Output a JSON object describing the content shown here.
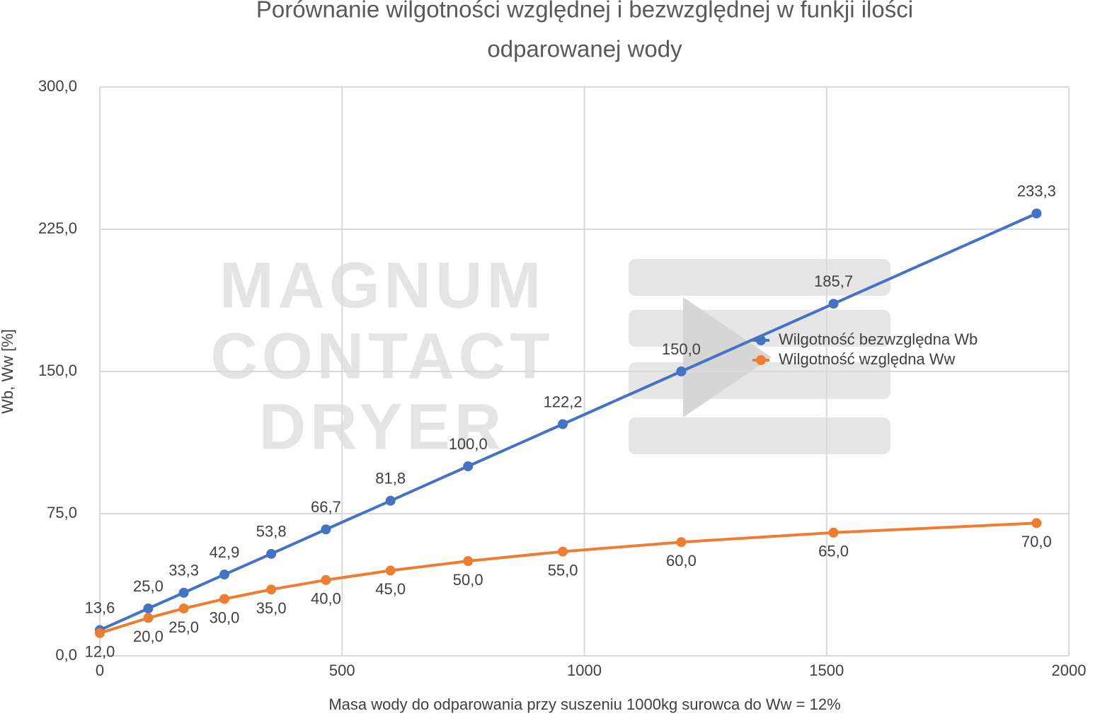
{
  "chart_data": {
    "type": "line",
    "title": [
      "Porównanie wilgotności względnej i bezwzględnej w funkji ilości",
      "odparowanej wody"
    ],
    "x_label": "Masa wody do odparowania przy suszeniu 1000kg surowca do Ww = 12%",
    "y_label": "Wb, Ww [%]",
    "watermark": [
      "MAGNUM",
      "CONTACT",
      "DRYER"
    ],
    "x": [
      0,
      100,
      173.3,
      257.1,
      353.8,
      466.7,
      600,
      760,
      955.6,
      1200,
      1514.3,
      1933.3
    ],
    "series": [
      {
        "name": "Wilgotność bezwzględna Wb",
        "color": "#4472c4",
        "values": [
          13.6,
          25,
          33.3,
          42.9,
          53.8,
          66.7,
          81.8,
          100,
          122.2,
          150,
          185.7,
          233.3
        ],
        "value_labels": [
          "13,6",
          "25,0",
          "33,3",
          "42,9",
          "53,8",
          "66,7",
          "81,8",
          "100,0",
          "122,2",
          "150,0",
          "185,7",
          "233,3"
        ]
      },
      {
        "name": "Wilgotność względna Ww",
        "color": "#ed7d31",
        "values": [
          12,
          20,
          25,
          30,
          35,
          40,
          45,
          50,
          55,
          60,
          65,
          70
        ],
        "value_labels": [
          "12,0",
          "20,0",
          "25,0",
          "30,0",
          "35,0",
          "40,0",
          "45,0",
          "50,0",
          "55,0",
          "60,0",
          "65,0",
          "70,0"
        ]
      }
    ],
    "xlim": [
      0,
      2000
    ],
    "xticks": [
      0,
      500,
      1000,
      1500,
      2000
    ],
    "ylim": [
      0,
      300
    ],
    "yticks": [
      {
        "value": 0,
        "label": "0,0"
      },
      {
        "value": 75,
        "label": "75,0"
      },
      {
        "value": 150,
        "label": "150,0"
      },
      {
        "value": 225,
        "label": "225,0"
      },
      {
        "value": 300,
        "label": "300,0"
      }
    ],
    "grid": true,
    "legend": "right"
  }
}
